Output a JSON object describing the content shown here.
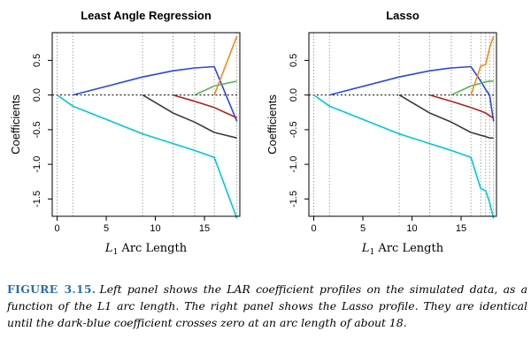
{
  "chart_data": [
    {
      "type": "line",
      "title": "Least Angle Regression",
      "xlabel": "L1 Arc Length",
      "ylabel": "Coefficients",
      "xlim": [
        -0.5,
        18.6
      ],
      "ylim": [
        -1.75,
        0.9
      ],
      "xticks": [
        0,
        5,
        10,
        15
      ],
      "yticks": [
        -1.5,
        -1.0,
        -0.5,
        0.0,
        0.5
      ],
      "vlines": [
        0,
        1.6,
        8.7,
        11.8,
        14.0,
        16.0,
        18.3
      ],
      "zero_line": true,
      "series": [
        {
          "color": "#00c7d2",
          "x": [
            0,
            1.6,
            8.7,
            11.8,
            14.0,
            16.0,
            18.3
          ],
          "y": [
            0,
            -0.16,
            -0.56,
            -0.7,
            -0.8,
            -0.9,
            -1.78
          ]
        },
        {
          "color": "#2b47d8",
          "x": [
            1.6,
            8.7,
            11.8,
            14.0,
            16.0,
            18.3
          ],
          "y": [
            0,
            0.26,
            0.35,
            0.39,
            0.41,
            -0.38
          ]
        },
        {
          "color": "#3b3b3b",
          "x": [
            8.7,
            11.8,
            14.0,
            16.0,
            18.3
          ],
          "y": [
            0,
            -0.26,
            -0.39,
            -0.54,
            -0.62
          ]
        },
        {
          "color": "#b41d1d",
          "x": [
            11.8,
            14.0,
            16.0,
            18.3
          ],
          "y": [
            0,
            -0.09,
            -0.18,
            -0.33
          ]
        },
        {
          "color": "#55b555",
          "x": [
            14.0,
            16.0,
            18.3
          ],
          "y": [
            0,
            0.13,
            0.2
          ]
        },
        {
          "color": "#f08a1d",
          "x": [
            16.0,
            18.3
          ],
          "y": [
            0,
            0.85
          ]
        }
      ]
    },
    {
      "type": "line",
      "title": "Lasso",
      "xlabel": "L1 Arc Length",
      "ylabel": "Coefficients",
      "xlim": [
        -0.5,
        18.6
      ],
      "ylim": [
        -1.75,
        0.9
      ],
      "xticks": [
        0,
        5,
        10,
        15
      ],
      "yticks": [
        -1.5,
        -1.0,
        -0.5,
        0.0,
        0.5
      ],
      "vlines": [
        0,
        1.6,
        8.7,
        11.8,
        14.0,
        16.0,
        17.0,
        17.5,
        17.9,
        18.3
      ],
      "zero_line": true,
      "series": [
        {
          "color": "#00c7d2",
          "x": [
            0,
            1.6,
            8.7,
            11.8,
            14.0,
            16.0,
            17.0,
            17.5,
            17.9,
            18.3
          ],
          "y": [
            0,
            -0.16,
            -0.56,
            -0.7,
            -0.8,
            -0.9,
            -1.35,
            -1.38,
            -1.55,
            -1.78
          ]
        },
        {
          "color": "#2b47d8",
          "x": [
            1.6,
            8.7,
            11.8,
            14.0,
            16.0,
            17.0,
            17.5,
            17.9,
            18.3
          ],
          "y": [
            0,
            0.26,
            0.35,
            0.39,
            0.41,
            0.2,
            0.08,
            0,
            -0.38
          ]
        },
        {
          "color": "#3b3b3b",
          "x": [
            8.7,
            11.8,
            14.0,
            16.0,
            17.0,
            17.5,
            17.9,
            18.3
          ],
          "y": [
            0,
            -0.26,
            -0.39,
            -0.54,
            -0.58,
            -0.6,
            -0.62,
            -0.62
          ]
        },
        {
          "color": "#b41d1d",
          "x": [
            11.8,
            14.0,
            16.0,
            17.0,
            17.5,
            17.9,
            18.3
          ],
          "y": [
            0,
            -0.09,
            -0.18,
            -0.23,
            -0.26,
            -0.3,
            -0.33
          ]
        },
        {
          "color": "#55b555",
          "x": [
            14.0,
            16.0,
            17.0,
            17.5,
            17.9,
            18.3
          ],
          "y": [
            0,
            0.13,
            0.17,
            0.19,
            0.2,
            0.2
          ]
        },
        {
          "color": "#f08a1d",
          "x": [
            16.0,
            17.0,
            17.5,
            17.9,
            18.3
          ],
          "y": [
            0,
            0.42,
            0.44,
            0.68,
            0.85
          ]
        }
      ]
    }
  ],
  "caption": {
    "label": "FIGURE 3.15.",
    "text": "Left panel shows the LAR coefficient profiles on the simulated data, as a function of the L1 arc length. The right panel shows the Lasso profile. They are identical until the dark-blue coefficient crosses zero at an arc length of about 18."
  }
}
